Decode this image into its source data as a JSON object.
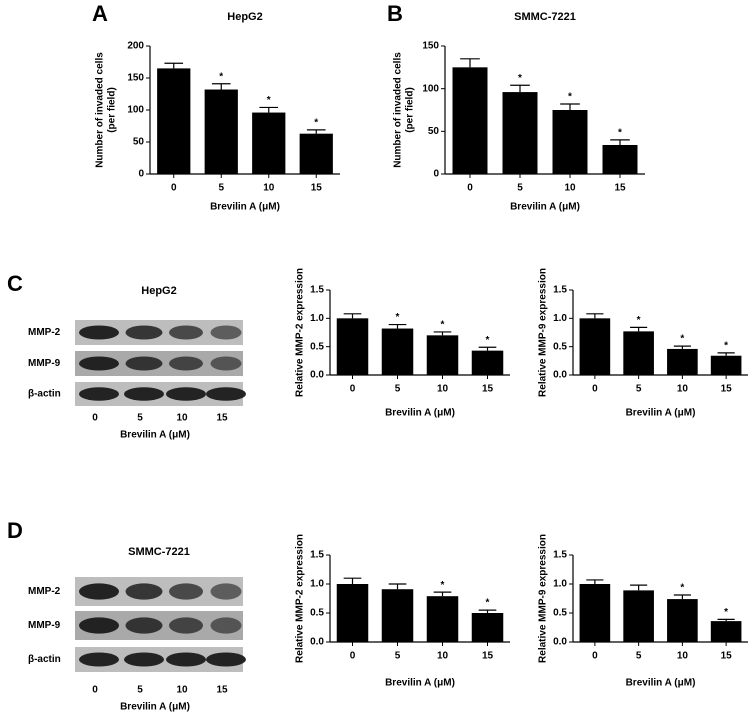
{
  "panels": [
    "A",
    "B",
    "C",
    "D"
  ],
  "blots": [
    {
      "title": "HepG2",
      "rows": [
        "MMP-2",
        "MMP-9",
        "β-actin"
      ],
      "lanes": [
        "0",
        "5",
        "10",
        "15"
      ],
      "xlabel": "Brevilin A (μM)"
    },
    {
      "title": "SMMC-7221",
      "rows": [
        "MMP-2",
        "MMP-9",
        "β-actin"
      ],
      "lanes": [
        "0",
        "5",
        "10",
        "15"
      ],
      "xlabel": "Brevilin A (μM)"
    }
  ],
  "chart_data": [
    {
      "type": "bar",
      "title": "HepG2",
      "ylabel": [
        "Number of invaded cells",
        "(per field)"
      ],
      "xlabel": "Brevilin A (μM)",
      "categories": [
        "0",
        "5",
        "10",
        "15"
      ],
      "values": [
        165,
        132,
        96,
        63
      ],
      "errors": [
        8,
        9,
        8,
        6
      ],
      "significance": [
        null,
        "*",
        "*",
        "*"
      ],
      "color": "#000000",
      "ylim": [
        0,
        200
      ],
      "yticks": [
        0,
        50,
        100,
        150,
        200
      ]
    },
    {
      "type": "bar",
      "title": "SMMC-7221",
      "ylabel": [
        "Number of invaded cells",
        "(per field)"
      ],
      "xlabel": "Brevilin A (μM)",
      "categories": [
        "0",
        "5",
        "10",
        "15"
      ],
      "values": [
        125,
        96,
        75,
        34
      ],
      "errors": [
        10,
        8,
        7,
        6
      ],
      "significance": [
        null,
        "*",
        "*",
        "*"
      ],
      "color": "#000000",
      "ylim": [
        0,
        150
      ],
      "yticks": [
        0,
        50,
        100,
        150
      ]
    },
    {
      "type": "bar",
      "ylabel": [
        "Relative MMP-2 expression"
      ],
      "xlabel": "Brevilin A (μM)",
      "categories": [
        "0",
        "5",
        "10",
        "15"
      ],
      "values": [
        1.0,
        0.82,
        0.7,
        0.43
      ],
      "errors": [
        0.08,
        0.07,
        0.06,
        0.06
      ],
      "significance": [
        null,
        "*",
        "*",
        "*"
      ],
      "color": "#000000",
      "ylim": [
        0,
        1.5
      ],
      "yticks": [
        {
          "value": 0,
          "label": "0.0"
        },
        0.5,
        {
          "value": 1,
          "label": "1.0"
        },
        1.5
      ]
    },
    {
      "type": "bar",
      "ylabel": [
        "Relative MMP-9 expression"
      ],
      "xlabel": "Brevilin A (μM)",
      "categories": [
        "0",
        "5",
        "10",
        "15"
      ],
      "values": [
        1.0,
        0.77,
        0.46,
        0.34
      ],
      "errors": [
        0.08,
        0.07,
        0.05,
        0.05
      ],
      "significance": [
        null,
        "*",
        "*",
        "*"
      ],
      "color": "#000000",
      "ylim": [
        0,
        1.5
      ],
      "yticks": [
        {
          "value": 0,
          "label": "0.0"
        },
        0.5,
        {
          "value": 1,
          "label": "1.0"
        },
        1.5
      ]
    },
    {
      "type": "bar",
      "ylabel": [
        "Relative MMP-2 expression"
      ],
      "xlabel": "Brevilin A (μM)",
      "categories": [
        "0",
        "5",
        "10",
        "15"
      ],
      "values": [
        1.0,
        0.91,
        0.79,
        0.5
      ],
      "errors": [
        0.1,
        0.09,
        0.07,
        0.05
      ],
      "significance": [
        null,
        null,
        "*",
        "*"
      ],
      "color": "#000000",
      "ylim": [
        0,
        1.5
      ],
      "yticks": [
        {
          "value": 0,
          "label": "0.0"
        },
        0.5,
        {
          "value": 1,
          "label": "1.0"
        },
        1.5
      ]
    },
    {
      "type": "bar",
      "ylabel": [
        "Relative MMP-9 expression"
      ],
      "xlabel": "Brevilin A (μM)",
      "categories": [
        "0",
        "5",
        "10",
        "15"
      ],
      "values": [
        1.0,
        0.89,
        0.74,
        0.36
      ],
      "errors": [
        0.07,
        0.09,
        0.07,
        0.03
      ],
      "significance": [
        null,
        null,
        "*",
        "*"
      ],
      "color": "#000000",
      "ylim": [
        0,
        1.5
      ],
      "yticks": [
        {
          "value": 0,
          "label": "0.0"
        },
        0.5,
        {
          "value": 1,
          "label": "1.0"
        },
        1.5
      ]
    }
  ]
}
